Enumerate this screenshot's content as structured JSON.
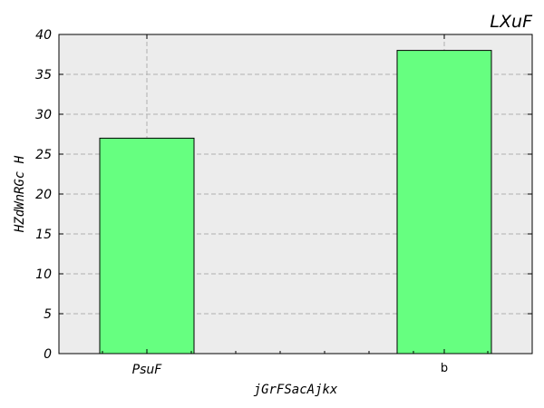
{
  "chart_data": {
    "type": "bar",
    "title": "LXuF",
    "xlabel": "jGrFSacAjkx",
    "ylabel": "HZdWnRGc H",
    "categories": [
      "PsuF",
      "b"
    ],
    "values": [
      27,
      38
    ],
    "ylim": [
      0,
      40
    ],
    "yticks": [
      "0",
      "5",
      "10",
      "15",
      "20",
      "25",
      "30",
      "35",
      "40"
    ],
    "grid": true,
    "colors": {
      "bar": "#66ff80",
      "plot_background": "#ececec",
      "grid": "#b0b0b0"
    }
  }
}
